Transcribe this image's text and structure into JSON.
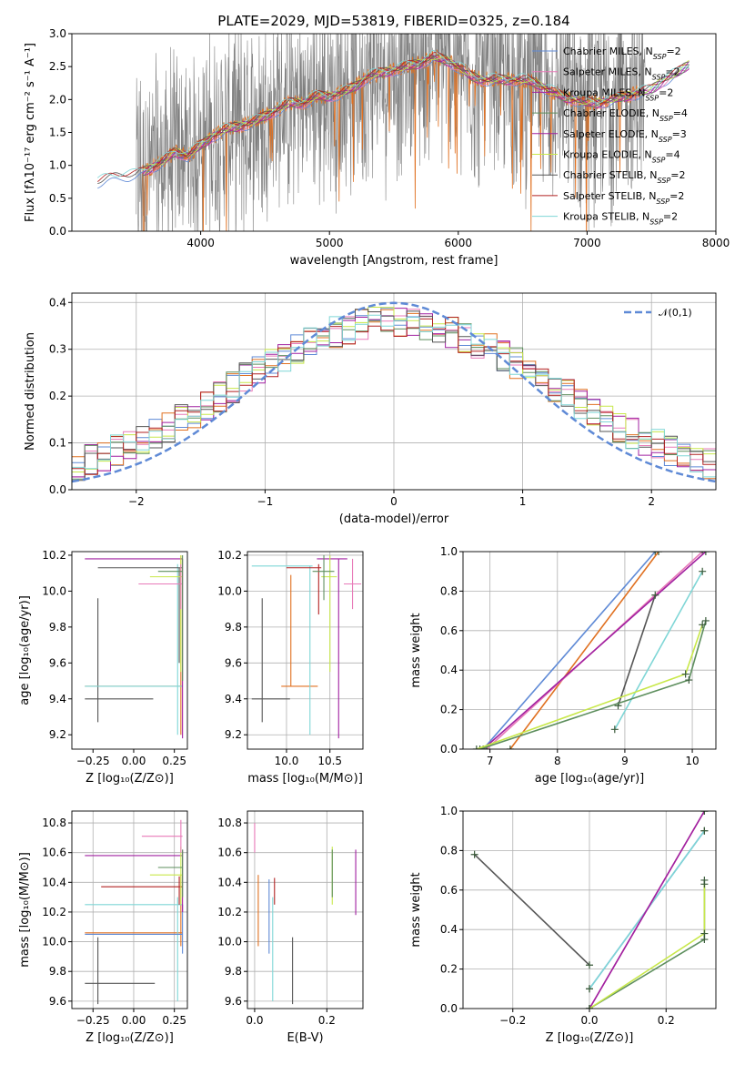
{
  "figure": {
    "title": "PLATE=2029, MJD=53819, FIBERID=0325, z=0.184"
  },
  "colors": {
    "Chabrier MILES": "#5f8ad6",
    "Salpeter MILES": "#e87ab8",
    "Kroupa MILES": "#a020a0",
    "Chabrier ELODIE": "#5e8f5e",
    "Salpeter ELODIE": "#a020a0",
    "Kroupa ELODIE": "#c8e84a",
    "Chabrier STELIB": "#555555",
    "Salpeter STELIB": "#b22222",
    "Kroupa STELIB": "#7fd6d6",
    "data": "#808080",
    "orange": "#e07020",
    "normal": "#5f8ad6"
  },
  "chart_data": [
    {
      "id": "spectrum",
      "type": "line",
      "title": "PLATE=2029, MJD=53819, FIBERID=0325, z=0.184",
      "xlabel": "wavelength [Angstrom, rest frame]",
      "ylabel": "Flux [fλ10⁻¹⁷ erg cm⁻² s⁻¹ A⁻¹]",
      "xlim": [
        3000,
        8000
      ],
      "ylim": [
        0,
        3.0
      ],
      "xticks": [
        "4000",
        "5000",
        "6000",
        "7000",
        "8000"
      ],
      "yticks": [
        "0.0",
        "0.5",
        "1.0",
        "1.5",
        "2.0",
        "2.5",
        "3.0"
      ],
      "legend_position": "top-right",
      "legend": [
        "Chabrier MILES, N_SSP=2",
        "Salpeter MILES, N_SSP=2",
        "Kroupa MILES, N_SSP=2",
        "Chabrier ELODIE, N_SSP=4",
        "Salpeter ELODIE, N_SSP=3",
        "Kroupa ELODIE, N_SSP=4",
        "Chabrier STELIB, N_SSP=2",
        "Salpeter STELIB, N_SSP=2",
        "Kroupa STELIB, N_SSP=2"
      ],
      "model_continuum": {
        "x": [
          3200,
          3300,
          3400,
          3500,
          3600,
          3700,
          3800,
          3900,
          4000,
          4100,
          4200,
          4300,
          4400,
          4500,
          4600,
          4700,
          4800,
          4900,
          5000,
          5100,
          5200,
          5300,
          5400,
          5500,
          5600,
          5700,
          5800,
          5900,
          6000,
          6100,
          6200,
          6300,
          6400,
          6500,
          6600,
          6700,
          6800,
          6900,
          7000,
          7100,
          7200,
          7300,
          7400,
          7500,
          7600,
          7700,
          7800
        ],
        "y": [
          0.75,
          0.8,
          0.85,
          0.85,
          0.95,
          1.05,
          1.2,
          1.15,
          1.3,
          1.45,
          1.55,
          1.6,
          1.65,
          1.75,
          1.85,
          1.95,
          1.95,
          2.05,
          2.05,
          2.1,
          2.2,
          2.35,
          2.4,
          2.45,
          2.5,
          2.55,
          2.65,
          2.6,
          2.5,
          2.35,
          2.3,
          2.3,
          2.3,
          2.3,
          2.25,
          2.15,
          2.05,
          2.0,
          1.95,
          1.95,
          2.0,
          2.05,
          2.1,
          2.15,
          2.3,
          2.4,
          2.55
        ]
      }
    },
    {
      "id": "residuals",
      "type": "bar",
      "xlabel": "(data-model)/error",
      "ylabel": "Normed distribution",
      "xlim": [
        -2.5,
        2.5
      ],
      "ylim": [
        0,
        0.42
      ],
      "xticks": [
        "−2",
        "−1",
        "0",
        "1",
        "2"
      ],
      "yticks": [
        "0.0",
        "0.1",
        "0.2",
        "0.3",
        "0.4"
      ],
      "grid": true,
      "legend_position": "top-right",
      "legend": [
        "𝒩(0,1)"
      ]
    },
    {
      "id": "age-vs-Z",
      "type": "scatter",
      "xlabel": "Z [log₁₀(Z/Z⊙)]",
      "ylabel": "age  [log₁₀(age/yr)]",
      "xlim": [
        -0.38,
        0.33
      ],
      "ylim": [
        9.12,
        10.22
      ],
      "xticks": [
        "−0.25",
        "0.00",
        "0.25"
      ],
      "yticks": [
        "9.2",
        "9.4",
        "9.6",
        "9.8",
        "10.0",
        "10.2"
      ]
    },
    {
      "id": "age-vs-mass",
      "type": "scatter",
      "xlabel": "mass [log₁₀(M/M⊙)]",
      "xlim": [
        9.55,
        10.88
      ],
      "ylim": [
        9.12,
        10.22
      ],
      "xticks": [
        "10.0",
        "10.5"
      ],
      "yticks": [
        "9.2",
        "9.4",
        "9.6",
        "9.8",
        "10.0",
        "10.2"
      ],
      "grid": true
    },
    {
      "id": "massweight-vs-age",
      "type": "line",
      "xlabel": "age  [log₁₀(age/yr)]",
      "ylabel": "mass weight",
      "xlim": [
        6.6,
        10.35
      ],
      "ylim": [
        0,
        1.0
      ],
      "xticks": [
        "7",
        "8",
        "9",
        "10"
      ],
      "yticks": [
        "0.0",
        "0.2",
        "0.4",
        "0.6",
        "0.8",
        "1.0"
      ],
      "grid": true,
      "series": [
        {
          "color": "#5f8ad6",
          "x": [
            6.9,
            9.45
          ],
          "y": [
            0.0,
            1.0
          ]
        },
        {
          "color": "#e07020",
          "x": [
            7.3,
            9.5
          ],
          "y": [
            0.0,
            1.0
          ]
        },
        {
          "color": "#e87ab8",
          "x": [
            6.95,
            10.15
          ],
          "y": [
            0.0,
            1.0
          ]
        },
        {
          "color": "#a020a0",
          "x": [
            6.9,
            10.2
          ],
          "y": [
            0.0,
            1.0
          ]
        },
        {
          "color": "#555555",
          "x": [
            8.9,
            9.45
          ],
          "y": [
            0.22,
            0.78
          ]
        },
        {
          "color": "#7fd6d6",
          "x": [
            8.85,
            10.15
          ],
          "y": [
            0.1,
            0.9
          ]
        },
        {
          "color": "#5e8f5e",
          "x": [
            6.85,
            9.95,
            10.2
          ],
          "y": [
            0.0,
            0.35,
            0.65
          ]
        },
        {
          "color": "#c8e84a",
          "x": [
            6.8,
            9.9,
            10.15
          ],
          "y": [
            0.0,
            0.38,
            0.63
          ]
        }
      ]
    },
    {
      "id": "mass-vs-Z",
      "type": "scatter",
      "xlabel": "Z [log₁₀(Z/Z⊙)]",
      "ylabel": "mass [log₁₀(M/M⊙)]",
      "xlim": [
        -0.38,
        0.33
      ],
      "ylim": [
        9.55,
        10.88
      ],
      "xticks": [
        "−0.25",
        "0.00",
        "0.25"
      ],
      "yticks": [
        "9.6",
        "9.8",
        "10.0",
        "10.2",
        "10.4",
        "10.6",
        "10.8"
      ],
      "grid": true
    },
    {
      "id": "mass-vs-ebv",
      "type": "scatter",
      "xlabel": "E(B-V)",
      "xlim": [
        -0.02,
        0.3
      ],
      "ylim": [
        9.55,
        10.88
      ],
      "xticks": [
        "0.0",
        "0.2"
      ],
      "yticks": [
        "9.6",
        "9.8",
        "10.0",
        "10.2",
        "10.4",
        "10.6",
        "10.8"
      ],
      "grid": true
    },
    {
      "id": "massweight-vs-Z",
      "type": "line",
      "xlabel": "Z [log₁₀(Z/Z⊙)]",
      "ylabel": "mass weight",
      "xlim": [
        -0.33,
        0.33
      ],
      "ylim": [
        0,
        1.0
      ],
      "xticks": [
        "−0.2",
        "0.0",
        "0.2"
      ],
      "yticks": [
        "0.0",
        "0.2",
        "0.4",
        "0.6",
        "0.8",
        "1.0"
      ],
      "grid": true,
      "series": [
        {
          "color": "#555555",
          "x": [
            -0.3,
            0.0
          ],
          "y": [
            0.78,
            0.22
          ]
        },
        {
          "color": "#5f8ad6",
          "x": [
            0.0,
            0.3
          ],
          "y": [
            0.1,
            0.9
          ]
        },
        {
          "color": "#7fd6d6",
          "x": [
            0.0,
            0.3
          ],
          "y": [
            0.1,
            0.9
          ]
        },
        {
          "color": "#e87ab8",
          "x": [
            0.0,
            0.3
          ],
          "y": [
            0.0,
            1.0
          ]
        },
        {
          "color": "#a020a0",
          "x": [
            0.0,
            0.3
          ],
          "y": [
            0.0,
            1.0
          ]
        },
        {
          "color": "#5e8f5e",
          "x": [
            0.0,
            0.3,
            0.3
          ],
          "y": [
            0.0,
            0.35,
            0.65
          ]
        },
        {
          "color": "#c8e84a",
          "x": [
            0.0,
            0.3,
            0.3
          ],
          "y": [
            0.0,
            0.38,
            0.63
          ]
        }
      ]
    }
  ]
}
